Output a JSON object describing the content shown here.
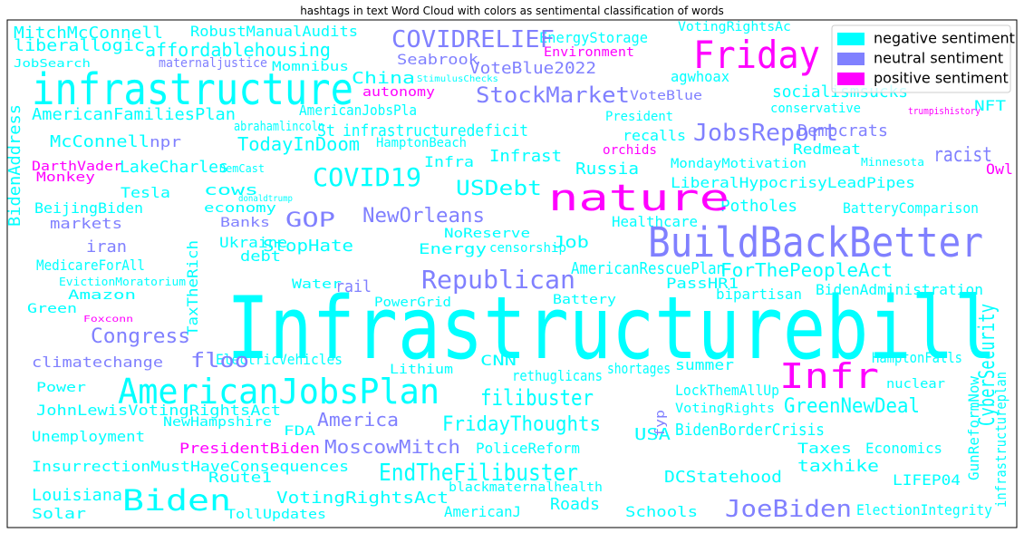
{
  "chart_data": {
    "type": "wordcloud",
    "title": "hashtags in text Word Cloud with colors as sentimental classification of words",
    "legend": "upper right",
    "series": [
      {
        "name": "negative sentiment",
        "color": "#00ffff",
        "words": [
          "Infrastructurebill",
          "infrastructure",
          "Biden",
          "AmericanJobsPlan",
          "COVID19",
          "EndTheFilibuster",
          "CyberSecurity",
          "GreenNewDeal",
          "filibuster",
          "FridayThoughts",
          "VotingRightsAct",
          "Louisiana",
          "Unemployment",
          "JohnLewisVotingRightsAct",
          "InsurrectionMustHaveConsequences",
          "Solar",
          "TollUpdates",
          "Route1",
          "Roads",
          "Schools",
          "ElectionIntegrity",
          "DCStatehood",
          "taxhike",
          "BidenBorderCrisis",
          "Taxes",
          "Economics",
          "USA",
          "PoliceReform",
          "LIFEP04",
          "AmericanJ",
          "blackmaternalhealth",
          "summer",
          "shortages",
          "LockThemAllUp",
          "VotingRights",
          "nuclear",
          "HamptonFalls",
          "rethuglicans",
          "CNN",
          "Lithium",
          "ElectricVehicles",
          "Power",
          "Green",
          "Amazon",
          "MedicareForAll",
          "EvictionMoratorium",
          "BeijingBiden",
          "Tesla",
          "LakeCharles",
          "McConnell",
          "AmericanFamiliesPlan",
          "liberallogic",
          "MitchMcConnell",
          "affordablehousing",
          "RobustManualAudits",
          "Momnibus",
          "JobSearch",
          "China",
          "EnergyStorage",
          "agwhoax",
          "President",
          "socialismsucks",
          "conservative",
          "NFT",
          "Redmeat",
          "Minnesota",
          "MondayMotivation",
          "LiberalHypocrisyLeadPipes",
          "BatteryComparison",
          "Potholes",
          "Healthcare",
          "ForThePeopleAct",
          "AmericanRescuePlan",
          "PassHR1",
          "bipartisan",
          "BidenAdministration",
          "Battery",
          "PowerGrid",
          "Water",
          "debt",
          "Ukraine",
          "StopHate",
          "Energy",
          "censorship",
          "Job",
          "NoReserve",
          "economy",
          "cows",
          "USDebt",
          "Infra",
          "Infrast",
          "Russia",
          "recalls",
          "infrastructuredeficit",
          "St",
          "HamptonBeach",
          "TodayInDoom",
          "abrahamlincoln",
          "AmericanJobsPla",
          "DemCast",
          "donaldtrump",
          "BidenAddress",
          "TaxTheRich",
          "GunReformNow",
          "infrastructureplan",
          "VotingRightsAc",
          "StimulusChecks",
          "FDA",
          "NewHampshire"
        ]
      },
      {
        "name": "neutral sentiment",
        "color": "#8080ff",
        "words": [
          "BuildBackBetter",
          "COVIDRELIEF",
          "StockMarket",
          "JobsReport",
          "GOP",
          "NewOrleans",
          "Republican",
          "JoeBiden",
          "MoscowMitch",
          "America",
          "Congress",
          "floo",
          "climatechange",
          "iran",
          "markets",
          "npr",
          "maternaljustice",
          "Seabrook",
          "VoteBlue2022",
          "VoteBlue",
          "Democrats",
          "racist",
          "rail",
          "Banks",
          "fyp"
        ]
      },
      {
        "name": "positive sentiment",
        "color": "#ff00ff",
        "words": [
          "nature",
          "Friday",
          "Infr",
          "PresidentBiden",
          "autonomy",
          "Environment",
          "trumpishistory",
          "Owl",
          "DarthVader",
          "Monkey",
          "orchids",
          "Foxconn"
        ]
      }
    ]
  }
}
